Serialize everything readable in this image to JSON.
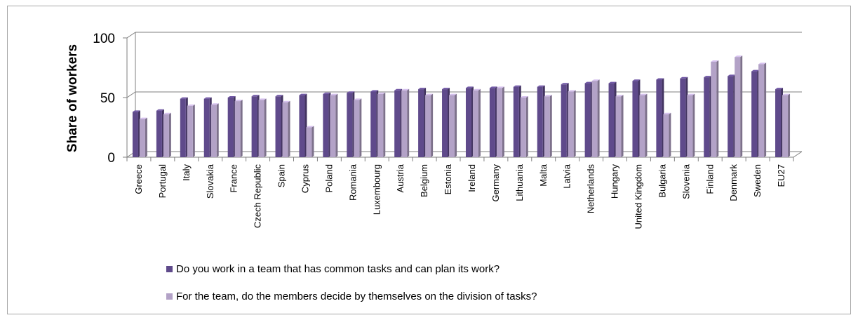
{
  "colors": {
    "series1": "#5f4a8b",
    "series2": "#b3a2c7",
    "grid": "#7f7f7f"
  },
  "chart_data": {
    "type": "bar",
    "title": "",
    "xlabel": "",
    "ylabel": "Share of workers",
    "ylim": [
      0,
      100
    ],
    "yticks": [
      0,
      50,
      100
    ],
    "grid": true,
    "legend_position": "bottom",
    "categories": [
      "Greece",
      "Portugal",
      "Italy",
      "Slovakia",
      "France",
      "Czech Republic",
      "Spain",
      "Cyprus",
      "Poland",
      "Romania",
      "Luxembourg",
      "Austria",
      "Belgium",
      "Estonia",
      "Ireland",
      "Germany",
      "Lithuania",
      "Malta",
      "Latvia",
      "Netherlands",
      "Hungary",
      "United Kingdom",
      "Bulgaria",
      "Slovenia",
      "Finland",
      "Denmark",
      "Sweden",
      "EU27"
    ],
    "series": [
      {
        "name": "Do you work in a team that has common tasks and can plan its work?",
        "values": [
          38,
          39,
          49,
          49,
          50,
          51,
          51,
          52,
          53,
          54,
          55,
          56,
          57,
          57,
          58,
          58,
          59,
          59,
          61,
          62,
          62,
          64,
          65,
          66,
          67,
          68,
          72,
          57
        ]
      },
      {
        "name": "For the team, do the members decide by themselves on the division of tasks?",
        "values": [
          32,
          36,
          43,
          44,
          47,
          48,
          46,
          25,
          52,
          48,
          53,
          56,
          52,
          52,
          56,
          58,
          50,
          51,
          55,
          64,
          51,
          52,
          36,
          52,
          80,
          84,
          78,
          52
        ]
      }
    ]
  }
}
